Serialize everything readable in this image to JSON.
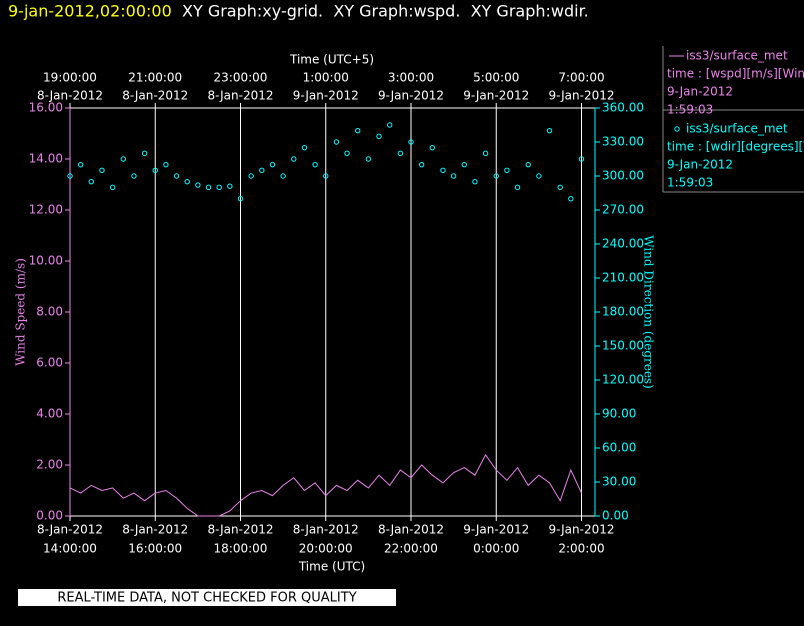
{
  "header": {
    "time": "9-jan-2012,02:00:00",
    "title": "XY Graph:xy-grid.  XY Graph:wspd.  XY Graph:wdir."
  },
  "chart_data": {
    "type": "line",
    "x_top_label": "Time (UTC+5)",
    "x_label": "Time (UTC)",
    "y_label": "Wind Speed (m/s)",
    "y2_label": "Wind Direction (degrees)",
    "grid": "x",
    "xlim": [
      "2012-01-08T14:00Z",
      "2012-01-09T02:19Z"
    ],
    "xticks": [
      {
        "value": "2012-01-08T14:00Z",
        "label": [
          "8-Jan-2012",
          "14:00:00"
        ]
      },
      {
        "value": "2012-01-08T16:00Z",
        "label": [
          "8-Jan-2012",
          "16:00:00"
        ]
      },
      {
        "value": "2012-01-08T18:00Z",
        "label": [
          "8-Jan-2012",
          "18:00:00"
        ]
      },
      {
        "value": "2012-01-08T20:00Z",
        "label": [
          "8-Jan-2012",
          "20:00:00"
        ]
      },
      {
        "value": "2012-01-08T22:00Z",
        "label": [
          "8-Jan-2012",
          "22:00:00"
        ]
      },
      {
        "value": "2012-01-09T00:00Z",
        "label": [
          "9-Jan-2012",
          "0:00:00"
        ]
      },
      {
        "value": "2012-01-09T02:00Z",
        "label": [
          "9-Jan-2012",
          "2:00:00"
        ]
      }
    ],
    "x2ticks": [
      {
        "value": "2012-01-08T19:00+05:00",
        "label": [
          "19:00:00",
          "8-Jan-2012"
        ]
      },
      {
        "value": "2012-01-08T21:00+05:00",
        "label": [
          "21:00:00",
          "8-Jan-2012"
        ]
      },
      {
        "value": "2012-01-08T23:00+05:00",
        "label": [
          "23:00:00",
          "8-Jan-2012"
        ]
      },
      {
        "value": "2012-01-09T01:00+05:00",
        "label": [
          "1:00:00",
          "9-Jan-2012"
        ]
      },
      {
        "value": "2012-01-09T03:00+05:00",
        "label": [
          "3:00:00",
          "9-Jan-2012"
        ]
      },
      {
        "value": "2012-01-09T05:00+05:00",
        "label": [
          "5:00:00",
          "9-Jan-2012"
        ]
      },
      {
        "value": "2012-01-09T07:00+05:00",
        "label": [
          "7:00:00",
          "9-Jan-2012"
        ]
      }
    ],
    "ylim": [
      0,
      16
    ],
    "yticks": [
      {
        "value": 0,
        "label": "0.00"
      },
      {
        "value": 2,
        "label": "2.00"
      },
      {
        "value": 4,
        "label": "4.00"
      },
      {
        "value": 6,
        "label": "6.00"
      },
      {
        "value": 8,
        "label": "8.00"
      },
      {
        "value": 10,
        "label": "10.00"
      },
      {
        "value": 12,
        "label": "12.00"
      },
      {
        "value": 14,
        "label": "14.00"
      },
      {
        "value": 16,
        "label": "16.00"
      }
    ],
    "y2lim": [
      0,
      360
    ],
    "y2ticks": [
      {
        "value": 0,
        "label": "0.00"
      },
      {
        "value": 30,
        "label": "30.00"
      },
      {
        "value": 60,
        "label": "60.00"
      },
      {
        "value": 90,
        "label": "90.00"
      },
      {
        "value": 120,
        "label": "120.00"
      },
      {
        "value": 150,
        "label": "150.00"
      },
      {
        "value": 180,
        "label": "180.00"
      },
      {
        "value": 210,
        "label": "210.00"
      },
      {
        "value": 240,
        "label": "240.00"
      },
      {
        "value": 270,
        "label": "270.00"
      },
      {
        "value": 300,
        "label": "300.00"
      },
      {
        "value": 330,
        "label": "330.00"
      },
      {
        "value": 360,
        "label": "360.00"
      }
    ],
    "x": [
      "2012-01-08T14:00Z",
      "2012-01-08T14:15Z",
      "2012-01-08T14:30Z",
      "2012-01-08T14:45Z",
      "2012-01-08T15:00Z",
      "2012-01-08T15:15Z",
      "2012-01-08T15:30Z",
      "2012-01-08T15:45Z",
      "2012-01-08T16:00Z",
      "2012-01-08T16:15Z",
      "2012-01-08T16:30Z",
      "2012-01-08T16:45Z",
      "2012-01-08T17:00Z",
      "2012-01-08T17:15Z",
      "2012-01-08T17:30Z",
      "2012-01-08T17:45Z",
      "2012-01-08T18:00Z",
      "2012-01-08T18:15Z",
      "2012-01-08T18:30Z",
      "2012-01-08T18:45Z",
      "2012-01-08T19:00Z",
      "2012-01-08T19:15Z",
      "2012-01-08T19:30Z",
      "2012-01-08T19:45Z",
      "2012-01-08T20:00Z",
      "2012-01-08T20:15Z",
      "2012-01-08T20:30Z",
      "2012-01-08T20:45Z",
      "2012-01-08T21:00Z",
      "2012-01-08T21:15Z",
      "2012-01-08T21:30Z",
      "2012-01-08T21:45Z",
      "2012-01-08T22:00Z",
      "2012-01-08T22:15Z",
      "2012-01-08T22:30Z",
      "2012-01-08T22:45Z",
      "2012-01-08T23:00Z",
      "2012-01-08T23:15Z",
      "2012-01-08T23:30Z",
      "2012-01-08T23:45Z",
      "2012-01-09T00:00Z",
      "2012-01-09T00:15Z",
      "2012-01-09T00:30Z",
      "2012-01-09T00:45Z",
      "2012-01-09T01:00Z",
      "2012-01-09T01:15Z",
      "2012-01-09T01:30Z",
      "2012-01-09T01:45Z",
      "2012-01-09T02:00Z"
    ],
    "series": [
      {
        "name": "iss3/surface_met",
        "color": "#e884e8",
        "mode": "line",
        "legend_lines": [
          "time : [wspd][m/s][Wind",
          "9-Jan-2012",
          "1:59:03"
        ],
        "values": [
          1.1,
          0.9,
          1.2,
          1.0,
          1.1,
          0.7,
          0.9,
          0.6,
          0.9,
          1.0,
          0.7,
          0.3,
          0.0,
          0.0,
          0.0,
          0.2,
          0.6,
          0.9,
          1.0,
          0.8,
          1.2,
          1.5,
          1.0,
          1.3,
          0.8,
          1.2,
          1.0,
          1.4,
          1.1,
          1.6,
          1.2,
          1.8,
          1.5,
          2.0,
          1.6,
          1.3,
          1.7,
          1.9,
          1.6,
          2.4,
          1.8,
          1.4,
          1.9,
          1.2,
          1.6,
          1.3,
          0.6,
          1.8,
          0.9
        ]
      },
      {
        "name": "iss3/surface_met",
        "color": "#00ffff",
        "mode": "markers",
        "axis": "y2",
        "legend_lines": [
          "time : [wdir][degrees][V",
          "9-Jan-2012",
          "1:59:03"
        ],
        "values": [
          300,
          310,
          295,
          305,
          290,
          315,
          300,
          320,
          305,
          310,
          300,
          295,
          292,
          290,
          290,
          291,
          280,
          300,
          305,
          310,
          300,
          315,
          325,
          310,
          300,
          330,
          320,
          340,
          315,
          335,
          345,
          320,
          330,
          310,
          325,
          305,
          300,
          310,
          295,
          320,
          300,
          305,
          290,
          310,
          300,
          340,
          290,
          280,
          315
        ]
      }
    ]
  },
  "footer": "REAL-TIME DATA, NOT CHECKED FOR QUALITY"
}
